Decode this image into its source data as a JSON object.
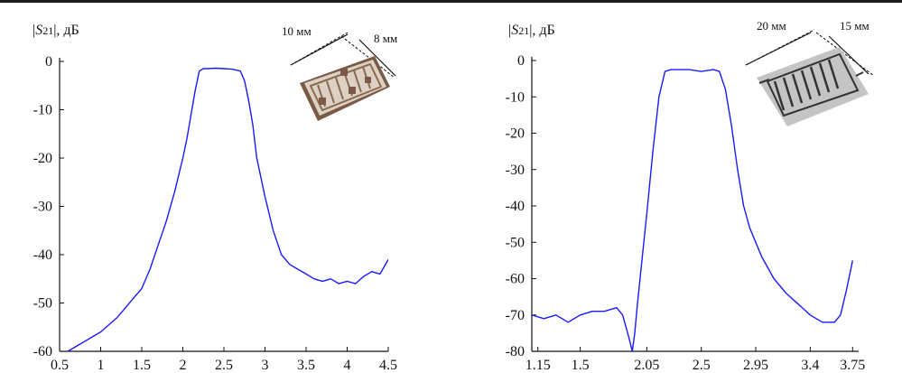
{
  "colors": {
    "series": "#1a1aff",
    "axis": "#111111",
    "chip": "#8a6a55",
    "chip_metal": "#e8e0d4"
  },
  "chart_data": [
    {
      "type": "line",
      "ylabel": "|S21|, дБ",
      "ylabel_parts": [
        "|",
        "S",
        "21",
        "|, дБ"
      ],
      "xlim": [
        0.5,
        4.5
      ],
      "ylim": [
        -60,
        0
      ],
      "x_ticks": [
        "0.5",
        "1",
        "1.5",
        "2",
        "2.5",
        "3",
        "3.5",
        "4",
        "4.5"
      ],
      "y_ticks": [
        "0",
        "-10",
        "-20",
        "-30",
        "-40",
        "-50",
        "-60"
      ],
      "annotations": {
        "width": "10 мм",
        "height": "8 мм"
      },
      "series": [
        {
          "x": [
            0.6,
            0.7,
            0.8,
            0.9,
            1.0,
            1.1,
            1.2,
            1.3,
            1.4,
            1.5,
            1.6,
            1.7,
            1.8,
            1.9,
            2.0,
            2.05,
            2.1,
            2.15,
            2.2,
            2.25,
            2.3,
            2.4,
            2.5,
            2.6,
            2.7,
            2.75,
            2.8,
            2.85,
            2.9,
            3.0,
            3.1,
            3.2,
            3.3,
            3.4,
            3.5,
            3.6,
            3.7,
            3.8,
            3.9,
            4.0,
            4.1,
            4.2,
            4.3,
            4.4,
            4.5
          ],
          "y": [
            -60,
            -59,
            -58,
            -57,
            -56,
            -54.5,
            -53,
            -51,
            -49,
            -47,
            -43,
            -38,
            -33,
            -27,
            -20,
            -16,
            -11,
            -6,
            -2,
            -1.5,
            -1.5,
            -1.4,
            -1.5,
            -1.6,
            -2,
            -4,
            -8,
            -13,
            -20,
            -28,
            -35,
            -40,
            -42,
            -43,
            -44,
            -45,
            -45.5,
            -45,
            -46,
            -45.5,
            -46,
            -44.5,
            -43.5,
            -44,
            -41
          ]
        }
      ]
    },
    {
      "type": "line",
      "ylabel": "|S21|, дБ",
      "ylabel_parts": [
        "|",
        "S",
        "21",
        "|, дБ"
      ],
      "xlim": [
        1.1,
        3.8
      ],
      "ylim": [
        -80,
        0
      ],
      "x_ticks": [
        "1.15",
        "1.5",
        "2.05",
        "2.5",
        "2.95",
        "3.4",
        "3.75"
      ],
      "y_ticks": [
        "0",
        "-10",
        "-20",
        "-30",
        "-40",
        "-50",
        "-60",
        "-70",
        "-80"
      ],
      "annotations": {
        "width": "20 мм",
        "height": "15 мм"
      },
      "series": [
        {
          "x": [
            1.1,
            1.2,
            1.3,
            1.4,
            1.5,
            1.6,
            1.7,
            1.8,
            1.85,
            1.9,
            1.93,
            1.95,
            1.97,
            2.0,
            2.05,
            2.1,
            2.15,
            2.2,
            2.25,
            2.3,
            2.4,
            2.5,
            2.6,
            2.65,
            2.7,
            2.75,
            2.8,
            2.85,
            2.9,
            2.95,
            3.0,
            3.1,
            3.2,
            3.3,
            3.4,
            3.5,
            3.6,
            3.65,
            3.7,
            3.75
          ],
          "y": [
            -70,
            -71,
            -70,
            -72,
            -70,
            -69,
            -69,
            -68,
            -70,
            -76,
            -80,
            -75,
            -68,
            -58,
            -42,
            -25,
            -10,
            -3,
            -2.5,
            -2.5,
            -2.5,
            -3,
            -2.5,
            -3,
            -8,
            -18,
            -30,
            -40,
            -46,
            -50,
            -54,
            -60,
            -64,
            -67,
            -70,
            -72,
            -72,
            -70,
            -63,
            -55
          ]
        }
      ]
    }
  ]
}
